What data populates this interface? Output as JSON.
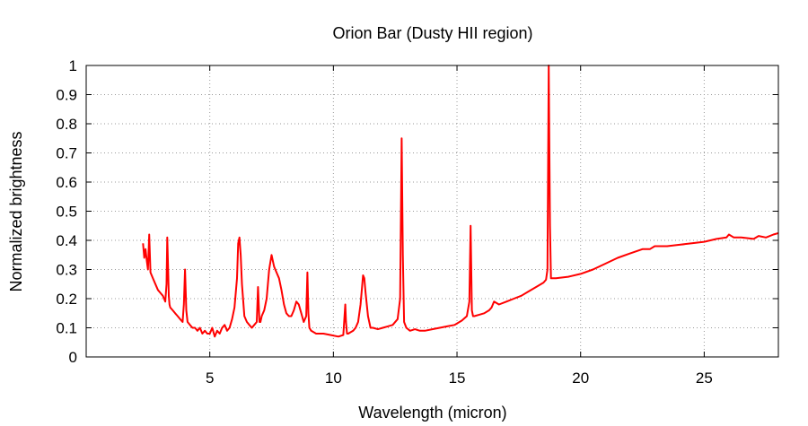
{
  "chart_data": {
    "type": "line",
    "title": "Orion Bar (Dusty HII region)",
    "xlabel": "Wavelength (micron)",
    "ylabel": "Normalized brightness",
    "xlim": [
      0,
      28
    ],
    "ylim": [
      0,
      1
    ],
    "xticks": [
      5,
      10,
      15,
      20,
      25
    ],
    "yticks": [
      0,
      0.1,
      0.2,
      0.3,
      0.4,
      0.5,
      0.6,
      0.7,
      0.8,
      0.9,
      1
    ],
    "grid": true,
    "legend": "none",
    "series_color": "#ff0000",
    "series": [
      {
        "x": [
          2.3,
          2.35,
          2.4,
          2.45,
          2.5,
          2.55,
          2.6,
          2.7,
          2.8,
          2.9,
          3.0,
          3.1,
          3.2,
          3.25,
          3.28,
          3.31,
          3.34,
          3.37,
          3.4,
          3.5,
          3.6,
          3.7,
          3.8,
          3.9,
          3.95,
          4.0,
          4.05,
          4.1,
          4.2,
          4.3,
          4.4,
          4.5,
          4.6,
          4.7,
          4.8,
          4.9,
          5.0,
          5.1,
          5.2,
          5.3,
          5.4,
          5.5,
          5.6,
          5.7,
          5.8,
          5.9,
          6.0,
          6.1,
          6.15,
          6.2,
          6.25,
          6.3,
          6.4,
          6.5,
          6.6,
          6.7,
          6.8,
          6.9,
          6.95,
          6.98,
          7.01,
          7.05,
          7.1,
          7.2,
          7.3,
          7.4,
          7.5,
          7.6,
          7.7,
          7.8,
          7.9,
          8.0,
          8.1,
          8.2,
          8.3,
          8.4,
          8.5,
          8.6,
          8.7,
          8.8,
          8.9,
          8.95,
          8.99,
          9.03,
          9.1,
          9.3,
          9.6,
          9.9,
          10.2,
          10.4,
          10.48,
          10.51,
          10.55,
          10.6,
          10.7,
          10.8,
          10.9,
          11.0,
          11.1,
          11.2,
          11.25,
          11.3,
          11.4,
          11.5,
          11.6,
          11.8,
          12.0,
          12.2,
          12.4,
          12.6,
          12.7,
          12.76,
          12.81,
          12.86,
          12.95,
          13.1,
          13.3,
          13.5,
          13.7,
          14.0,
          14.3,
          14.6,
          14.9,
          15.2,
          15.4,
          15.5,
          15.55,
          15.6,
          15.65,
          15.7,
          15.9,
          16.1,
          16.3,
          16.4,
          16.5,
          16.7,
          17.0,
          17.3,
          17.6,
          17.9,
          18.2,
          18.5,
          18.6,
          18.66,
          18.71,
          18.76,
          18.8,
          19.0,
          19.5,
          20.0,
          20.5,
          21.0,
          21.5,
          22.0,
          22.5,
          22.8,
          23.0,
          23.5,
          24.0,
          24.5,
          25.0,
          25.5,
          25.9,
          26.0,
          26.2,
          26.5,
          27.0,
          27.2,
          27.5,
          27.8,
          28.0
        ],
        "y": [
          0.39,
          0.34,
          0.37,
          0.33,
          0.3,
          0.42,
          0.29,
          0.27,
          0.25,
          0.23,
          0.22,
          0.21,
          0.19,
          0.25,
          0.41,
          0.32,
          0.21,
          0.18,
          0.17,
          0.16,
          0.15,
          0.14,
          0.13,
          0.12,
          0.18,
          0.3,
          0.16,
          0.12,
          0.11,
          0.1,
          0.1,
          0.09,
          0.1,
          0.08,
          0.09,
          0.08,
          0.08,
          0.1,
          0.07,
          0.09,
          0.08,
          0.1,
          0.11,
          0.09,
          0.1,
          0.13,
          0.17,
          0.27,
          0.39,
          0.41,
          0.35,
          0.25,
          0.14,
          0.12,
          0.11,
          0.1,
          0.11,
          0.12,
          0.24,
          0.18,
          0.12,
          0.12,
          0.14,
          0.16,
          0.2,
          0.3,
          0.35,
          0.31,
          0.29,
          0.27,
          0.23,
          0.18,
          0.15,
          0.14,
          0.14,
          0.16,
          0.19,
          0.18,
          0.15,
          0.12,
          0.14,
          0.29,
          0.15,
          0.1,
          0.09,
          0.08,
          0.08,
          0.075,
          0.07,
          0.075,
          0.18,
          0.12,
          0.08,
          0.08,
          0.085,
          0.09,
          0.1,
          0.12,
          0.18,
          0.28,
          0.27,
          0.22,
          0.14,
          0.1,
          0.1,
          0.095,
          0.1,
          0.105,
          0.11,
          0.13,
          0.2,
          0.75,
          0.35,
          0.12,
          0.1,
          0.09,
          0.095,
          0.09,
          0.09,
          0.095,
          0.1,
          0.105,
          0.11,
          0.125,
          0.14,
          0.19,
          0.45,
          0.16,
          0.14,
          0.14,
          0.145,
          0.15,
          0.16,
          0.17,
          0.19,
          0.18,
          0.19,
          0.2,
          0.21,
          0.225,
          0.24,
          0.255,
          0.265,
          0.3,
          1.0,
          0.45,
          0.27,
          0.27,
          0.275,
          0.285,
          0.3,
          0.32,
          0.34,
          0.355,
          0.37,
          0.37,
          0.38,
          0.38,
          0.385,
          0.39,
          0.395,
          0.405,
          0.41,
          0.42,
          0.41,
          0.41,
          0.405,
          0.415,
          0.41,
          0.42,
          0.425
        ]
      }
    ]
  }
}
